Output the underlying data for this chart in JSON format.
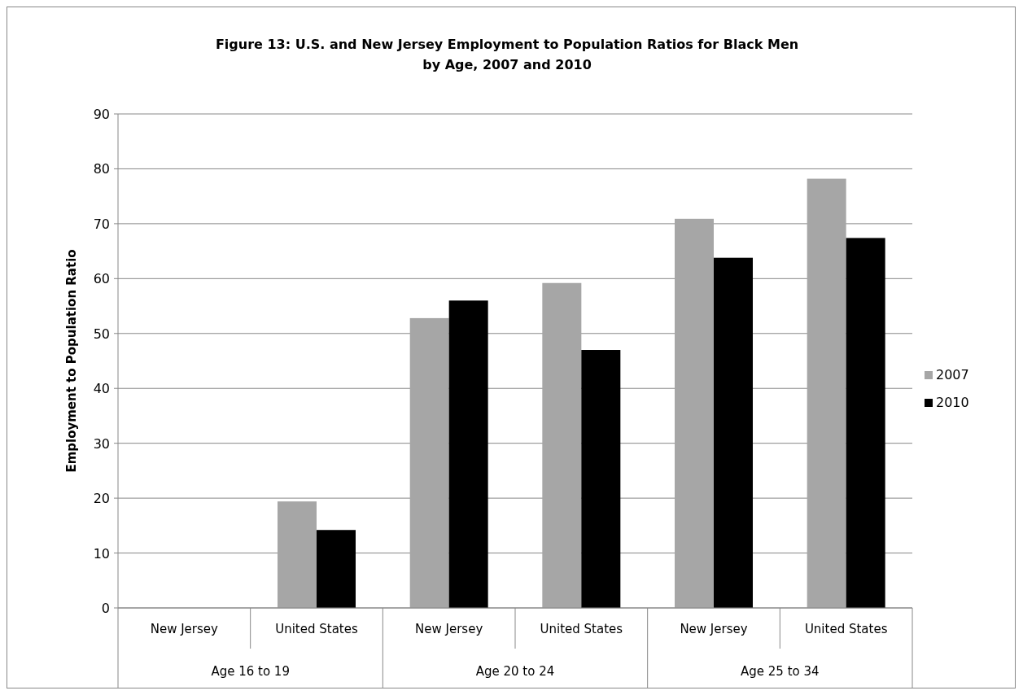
{
  "chart_data": {
    "type": "bar",
    "title": "Figure 13: U.S. and New Jersey Employment to Population Ratios for Black Men by Age, 2007 and 2010",
    "ylabel": "Employment to Population Ratio",
    "categories": [
      "New Jersey",
      "United States",
      "New Jersey",
      "United States",
      "New Jersey",
      "United States"
    ],
    "annotations": [
      "Age 16 to 19",
      "Age 20 to 24",
      "Age 25 to 34"
    ],
    "series": [
      {
        "name": "2007",
        "color": "#a6a6a6",
        "values": [
          null,
          19.4,
          52.8,
          59.2,
          70.9,
          78.2
        ]
      },
      {
        "name": "2010",
        "color": "#000000",
        "values": [
          null,
          14.2,
          56.0,
          47.0,
          63.8,
          67.4
        ]
      }
    ],
    "ylim": [
      0,
      90
    ],
    "yticks": [
      0,
      10,
      20,
      30,
      40,
      50,
      60,
      70,
      80,
      90
    ],
    "grid": "y",
    "legend": "right"
  }
}
